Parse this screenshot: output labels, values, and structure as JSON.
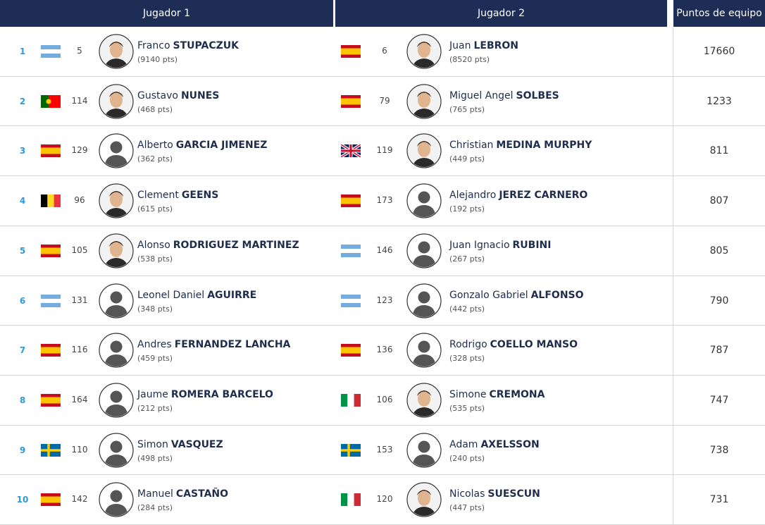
{
  "header": {
    "player1": "Jugador 1",
    "player2": "Jugador 2",
    "team_points": "Puntos de equipo"
  },
  "rows": [
    {
      "rank": 1,
      "player1": {
        "ranking": 5,
        "first_name": "Franco",
        "last_name": "STUPACZUK",
        "points": "(9140 pts)"
      },
      "player2": {
        "ranking": 6,
        "first_name": "Juan",
        "last_name": "LEBRON",
        "points": "(8520 pts)"
      },
      "team_points": 17660
    },
    {
      "rank": 2,
      "player1": {
        "ranking": 114,
        "first_name": "Gustavo",
        "last_name": "NUNES",
        "points": "(468 pts)"
      },
      "player2": {
        "ranking": 79,
        "first_name": "Miguel Angel",
        "last_name": "SOLBES",
        "points": "(765 pts)"
      },
      "team_points": 1233
    },
    {
      "rank": 3,
      "player1": {
        "ranking": 129,
        "first_name": "Alberto",
        "last_name": "GARCIA JIMENEZ",
        "points": "(362 pts)"
      },
      "player2": {
        "ranking": 119,
        "first_name": "Christian",
        "last_name": "MEDINA MURPHY",
        "points": "(449 pts)"
      },
      "team_points": 811
    },
    {
      "rank": 4,
      "player1": {
        "ranking": 96,
        "first_name": "Clement",
        "last_name": "GEENS",
        "points": "(615 pts)"
      },
      "player2": {
        "ranking": 173,
        "first_name": "Alejandro",
        "last_name": "JEREZ CARNERO",
        "points": "(192 pts)"
      },
      "team_points": 807
    },
    {
      "rank": 5,
      "player1": {
        "ranking": 105,
        "first_name": "Alonso",
        "last_name": "RODRIGUEZ MARTINEZ",
        "points": "(538 pts)"
      },
      "player2": {
        "ranking": 146,
        "first_name": "Juan Ignacio",
        "last_name": "RUBINI",
        "points": "(267 pts)"
      },
      "team_points": 805
    },
    {
      "rank": 6,
      "player1": {
        "ranking": 131,
        "first_name": "Leonel Daniel",
        "last_name": "AGUIRRE",
        "points": "(348 pts)"
      },
      "player2": {
        "ranking": 123,
        "first_name": "Gonzalo Gabriel",
        "last_name": "ALFONSO",
        "points": "(442 pts)"
      },
      "team_points": 790
    },
    {
      "rank": 7,
      "player1": {
        "ranking": 116,
        "first_name": "Andres",
        "last_name": "FERNANDEZ LANCHA",
        "points": "(459 pts)"
      },
      "player2": {
        "ranking": 136,
        "first_name": "Rodrigo",
        "last_name": "COELLO MANSO",
        "points": "(328 pts)"
      },
      "team_points": 787
    },
    {
      "rank": 8,
      "player1": {
        "ranking": 164,
        "first_name": "Jaume",
        "last_name": "ROMERA BARCELO",
        "points": "(212 pts)"
      },
      "player2": {
        "ranking": 106,
        "first_name": "Simone",
        "last_name": "CREMONA",
        "points": "(535 pts)"
      },
      "team_points": 747
    },
    {
      "rank": 9,
      "player1": {
        "ranking": 110,
        "first_name": "Simon",
        "last_name": "VASQUEZ",
        "points": "(498 pts)"
      },
      "player2": {
        "ranking": 153,
        "first_name": "Adam",
        "last_name": "AXELSSON",
        "points": "(240 pts)"
      },
      "team_points": 738
    },
    {
      "rank": 10,
      "player1": {
        "ranking": 142,
        "first_name": "Manuel",
        "last_name": "CASTAÑO",
        "points": "(284 pts)"
      },
      "player2": {
        "ranking": 120,
        "first_name": "Nicolas",
        "last_name": "SUESCUN",
        "points": "(447 pts)"
      },
      "team_points": 731
    }
  ]
}
